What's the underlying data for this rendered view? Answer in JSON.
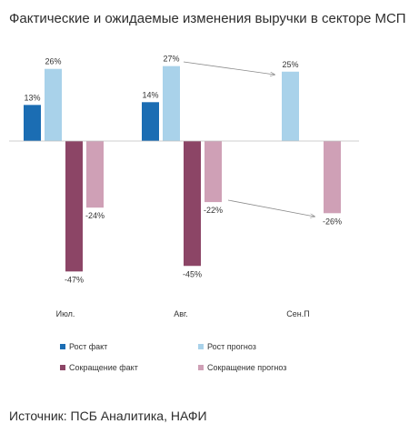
{
  "title": "Фактические и ожидаемые изменения выручки в секторе МСП",
  "source": "Источник: ПСБ Аналитика, НАФИ",
  "colors": {
    "growth_fact": "#1b6db3",
    "growth_forecast": "#a9d2ea",
    "decline_fact": "#8c4566",
    "decline_forecast": "#cfa0b6",
    "axis": "#bfbfbf",
    "arrow": "#8a8a8a",
    "label": "#333333"
  },
  "chart_data": {
    "type": "bar",
    "categories": [
      "Июл.",
      "Авг.",
      "Сен.П"
    ],
    "series": [
      {
        "name": "Рост факт",
        "values": [
          13,
          14,
          null
        ],
        "labels": [
          "13%",
          "14%",
          ""
        ]
      },
      {
        "name": "Рост прогноз",
        "values": [
          26,
          27,
          25
        ],
        "labels": [
          "26%",
          "27%",
          "25%"
        ]
      },
      {
        "name": "Сокращение факт",
        "values": [
          -47,
          -45,
          null
        ],
        "labels": [
          "-47%",
          "-45%",
          ""
        ]
      },
      {
        "name": "Сокращение прогноз",
        "values": [
          -24,
          -22,
          -26
        ],
        "labels": [
          "-24%",
          "-22%",
          "-26%"
        ]
      }
    ],
    "ylim": [
      -47,
      27
    ],
    "grid": false,
    "legend_position": "bottom",
    "annotations": [
      {
        "type": "arrow",
        "from": "Авг. Рост прогноз",
        "to": "Сен.П Рост прогноз"
      },
      {
        "type": "arrow",
        "from": "Авг. Сокращение прогноз",
        "to": "Сен.П Сокращение прогноз"
      }
    ]
  }
}
